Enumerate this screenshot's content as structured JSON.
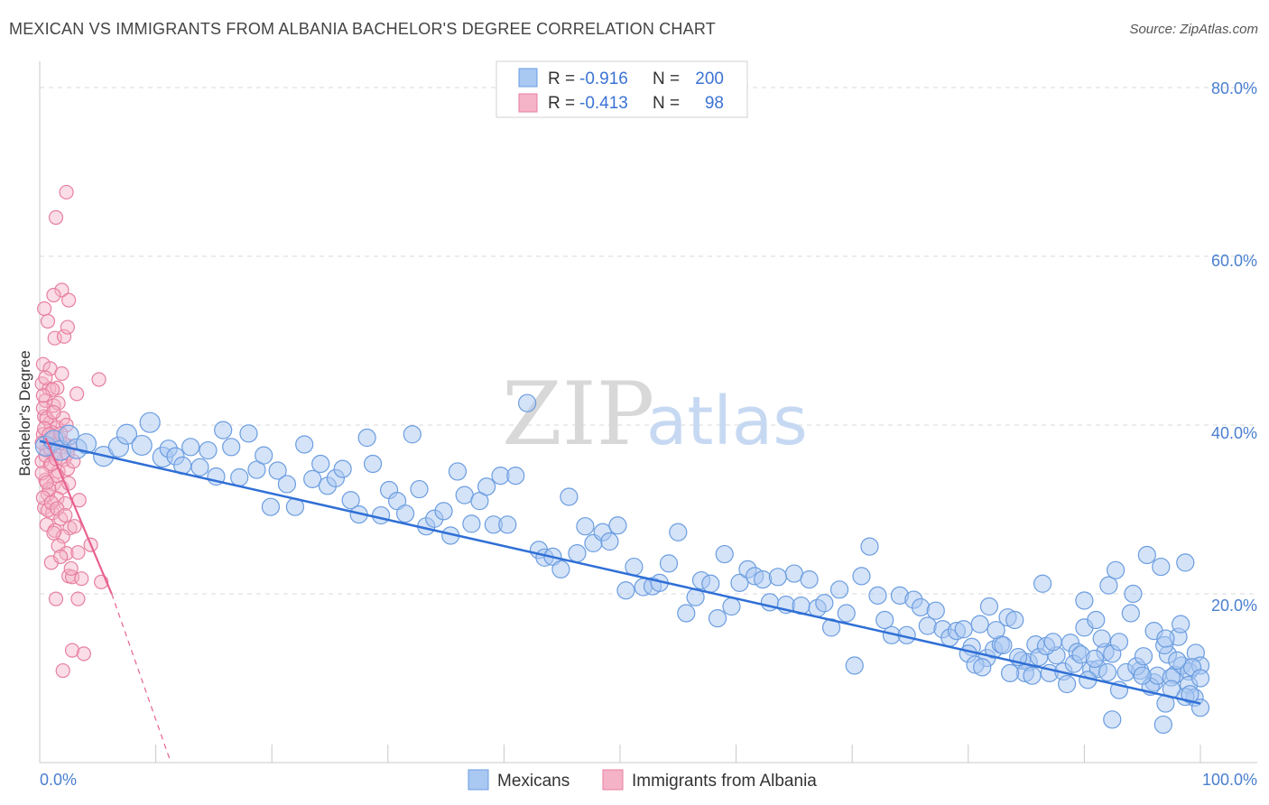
{
  "header": {
    "title": "MEXICAN VS IMMIGRANTS FROM ALBANIA BACHELOR'S DEGREE CORRELATION CHART",
    "source": "Source: ZipAtlas.com"
  },
  "watermark": {
    "zip": "ZIP",
    "atlas": "atlas"
  },
  "colors": {
    "blue_fill": "#a9c8f2",
    "blue_stroke": "#6b9de0",
    "blue_line": "#2f6fd6",
    "pink_fill": "#f5b3c8",
    "pink_stroke": "#e77fa0",
    "pink_line": "#e8628f",
    "grid": "#d9d9d9",
    "axis_text": "#4a7fd0"
  },
  "legend": {
    "rows": [
      {
        "r_label": "R =",
        "r_value": "-0.916",
        "n_label": "N =",
        "n_value": "200"
      },
      {
        "r_label": "R =",
        "r_value": "-0.413",
        "n_label": "N =",
        "n_value": "98"
      }
    ]
  },
  "bottom_legend": {
    "series1": "Mexicans",
    "series2": "Immigrants from Albania"
  },
  "chart_data": {
    "type": "scatter",
    "title": "MEXICAN VS IMMIGRANTS FROM ALBANIA BACHELOR'S DEGREE CORRELATION CHART",
    "xlabel": "",
    "ylabel": "Bachelor's Degree",
    "xlim": [
      0,
      100
    ],
    "ylim": [
      0,
      80
    ],
    "x_tick_labels": [
      "0.0%",
      "100.0%"
    ],
    "y_ticks": [
      20,
      40,
      60,
      80
    ],
    "y_tick_labels": [
      "20.0%",
      "40.0%",
      "60.0%",
      "80.0%"
    ],
    "grid": true,
    "series": [
      {
        "name": "Mexicans",
        "r": -0.916,
        "n": 200,
        "trend": {
          "x": [
            0,
            100
          ],
          "y": [
            38.1,
            7.0
          ]
        },
        "points": [
          [
            0.5,
            37.5
          ],
          [
            1.2,
            38.2
          ],
          [
            1.8,
            37.0
          ],
          [
            2.5,
            38.8
          ],
          [
            3.2,
            37.2
          ],
          [
            4.0,
            37.8
          ],
          [
            5.5,
            36.3
          ],
          [
            6.8,
            37.4
          ],
          [
            7.5,
            38.9
          ],
          [
            8.8,
            37.6
          ],
          [
            9.5,
            40.3
          ],
          [
            10.6,
            36.2
          ],
          [
            11.1,
            37.2
          ],
          [
            11.7,
            36.3
          ],
          [
            12.3,
            35.2
          ],
          [
            13.0,
            37.4
          ],
          [
            13.8,
            35.0
          ],
          [
            14.5,
            37.0
          ],
          [
            15.2,
            33.9
          ],
          [
            15.8,
            39.4
          ],
          [
            16.5,
            37.4
          ],
          [
            17.2,
            33.8
          ],
          [
            18.0,
            39.0
          ],
          [
            18.7,
            34.7
          ],
          [
            19.3,
            36.4
          ],
          [
            19.9,
            30.3
          ],
          [
            20.5,
            34.6
          ],
          [
            21.3,
            33.0
          ],
          [
            22.0,
            30.3
          ],
          [
            22.8,
            37.7
          ],
          [
            23.5,
            33.6
          ],
          [
            24.2,
            35.4
          ],
          [
            24.8,
            32.8
          ],
          [
            25.5,
            33.7
          ],
          [
            26.1,
            34.8
          ],
          [
            26.8,
            31.1
          ],
          [
            27.5,
            29.4
          ],
          [
            28.2,
            38.5
          ],
          [
            28.7,
            35.4
          ],
          [
            29.4,
            29.3
          ],
          [
            30.1,
            32.3
          ],
          [
            30.8,
            31.0
          ],
          [
            31.5,
            29.5
          ],
          [
            32.1,
            38.9
          ],
          [
            32.7,
            32.4
          ],
          [
            33.3,
            28.0
          ],
          [
            34.0,
            28.9
          ],
          [
            34.8,
            29.8
          ],
          [
            35.4,
            26.9
          ],
          [
            36.0,
            34.5
          ],
          [
            36.6,
            31.7
          ],
          [
            37.2,
            28.3
          ],
          [
            37.9,
            31.0
          ],
          [
            38.5,
            32.7
          ],
          [
            39.1,
            28.2
          ],
          [
            39.7,
            34.0
          ],
          [
            40.3,
            28.2
          ],
          [
            41.0,
            34.0
          ],
          [
            42.0,
            42.6
          ],
          [
            43.0,
            25.2
          ],
          [
            43.5,
            24.3
          ],
          [
            44.2,
            24.4
          ],
          [
            44.9,
            22.9
          ],
          [
            45.6,
            31.5
          ],
          [
            46.3,
            24.8
          ],
          [
            47.0,
            28.0
          ],
          [
            47.7,
            26.0
          ],
          [
            48.5,
            27.3
          ],
          [
            49.1,
            26.2
          ],
          [
            49.8,
            28.1
          ],
          [
            50.5,
            20.4
          ],
          [
            51.2,
            23.2
          ],
          [
            52.0,
            20.8
          ],
          [
            52.8,
            20.9
          ],
          [
            53.4,
            21.3
          ],
          [
            54.2,
            23.6
          ],
          [
            55.0,
            27.3
          ],
          [
            55.7,
            17.7
          ],
          [
            56.5,
            19.6
          ],
          [
            57.0,
            21.6
          ],
          [
            57.8,
            21.2
          ],
          [
            58.4,
            17.1
          ],
          [
            59.0,
            24.7
          ],
          [
            59.6,
            18.5
          ],
          [
            60.3,
            21.3
          ],
          [
            61.0,
            22.9
          ],
          [
            61.6,
            22.1
          ],
          [
            62.3,
            21.7
          ],
          [
            62.9,
            19.0
          ],
          [
            63.6,
            22.0
          ],
          [
            64.3,
            18.7
          ],
          [
            65.0,
            22.4
          ],
          [
            65.6,
            18.6
          ],
          [
            66.3,
            21.7
          ],
          [
            67.0,
            18.3
          ],
          [
            67.6,
            18.9
          ],
          [
            68.2,
            16.0
          ],
          [
            68.9,
            20.5
          ],
          [
            69.5,
            17.7
          ],
          [
            70.2,
            11.5
          ],
          [
            70.8,
            22.1
          ],
          [
            71.5,
            25.6
          ],
          [
            72.2,
            19.8
          ],
          [
            72.8,
            16.9
          ],
          [
            73.4,
            15.1
          ],
          [
            74.1,
            19.8
          ],
          [
            74.7,
            15.1
          ],
          [
            75.3,
            19.3
          ],
          [
            75.9,
            18.4
          ],
          [
            76.5,
            16.2
          ],
          [
            77.2,
            18.0
          ],
          [
            77.8,
            15.8
          ],
          [
            78.4,
            14.8
          ],
          [
            79.0,
            15.6
          ],
          [
            79.6,
            15.8
          ],
          [
            80.3,
            13.7
          ],
          [
            81.0,
            16.4
          ],
          [
            81.6,
            12.4
          ],
          [
            82.2,
            13.4
          ],
          [
            82.8,
            14.0
          ],
          [
            83.4,
            17.2
          ],
          [
            84.0,
            16.9
          ],
          [
            84.6,
            12.1
          ],
          [
            85.2,
            11.9
          ],
          [
            85.8,
            14.0
          ],
          [
            86.4,
            21.2
          ],
          [
            87.0,
            10.6
          ],
          [
            87.6,
            12.7
          ],
          [
            88.2,
            10.8
          ],
          [
            88.8,
            14.2
          ],
          [
            89.4,
            13.1
          ],
          [
            90.0,
            16.0
          ],
          [
            90.6,
            11.0
          ],
          [
            91.2,
            11.1
          ],
          [
            91.8,
            13.1
          ],
          [
            92.4,
            12.9
          ],
          [
            93.0,
            14.3
          ],
          [
            93.6,
            10.7
          ],
          [
            94.2,
            20.0
          ],
          [
            94.8,
            10.9
          ],
          [
            95.4,
            24.6
          ],
          [
            96.0,
            9.5
          ],
          [
            96.6,
            23.2
          ],
          [
            97.2,
            12.8
          ],
          [
            97.8,
            10.4
          ],
          [
            98.4,
            11.5
          ],
          [
            99.0,
            10.8
          ],
          [
            99.6,
            13.0
          ],
          [
            100.0,
            11.5
          ],
          [
            94.5,
            11.4
          ],
          [
            95.1,
            12.6
          ],
          [
            95.7,
            9.0
          ],
          [
            96.3,
            10.3
          ],
          [
            96.9,
            13.9
          ],
          [
            97.5,
            10.1
          ],
          [
            98.1,
            14.9
          ],
          [
            98.7,
            23.7
          ],
          [
            99.3,
            11.3
          ],
          [
            88.5,
            9.3
          ],
          [
            89.1,
            11.7
          ],
          [
            89.7,
            12.8
          ],
          [
            90.3,
            9.8
          ],
          [
            90.9,
            12.3
          ],
          [
            91.5,
            14.7
          ],
          [
            92.1,
            21.0
          ],
          [
            92.7,
            22.8
          ],
          [
            84.3,
            12.5
          ],
          [
            84.9,
            10.6
          ],
          [
            85.5,
            10.3
          ],
          [
            86.1,
            12.5
          ],
          [
            86.7,
            13.8
          ],
          [
            87.3,
            14.3
          ],
          [
            80.0,
            12.9
          ],
          [
            80.6,
            11.6
          ],
          [
            81.2,
            11.3
          ],
          [
            81.8,
            18.5
          ],
          [
            82.4,
            15.7
          ],
          [
            83.0,
            13.9
          ],
          [
            83.6,
            10.6
          ],
          [
            90.0,
            19.2
          ],
          [
            91.0,
            16.9
          ],
          [
            92.0,
            10.7
          ],
          [
            93.0,
            8.6
          ],
          [
            94.0,
            17.7
          ],
          [
            95.0,
            10.3
          ],
          [
            96.0,
            15.6
          ],
          [
            97.0,
            14.7
          ],
          [
            98.0,
            12.1
          ],
          [
            99.0,
            9.2
          ],
          [
            99.5,
            7.7
          ],
          [
            100.0,
            10.0
          ],
          [
            97.0,
            7.0
          ],
          [
            92.4,
            5.1
          ],
          [
            96.8,
            4.5
          ],
          [
            98.7,
            7.8
          ],
          [
            100.0,
            6.5
          ],
          [
            97.5,
            8.7
          ],
          [
            98.3,
            16.4
          ],
          [
            99.1,
            8.1
          ]
        ]
      },
      {
        "name": "Immigrants from Albania",
        "r": -0.413,
        "n": 98,
        "trend": {
          "x": [
            0.5,
            6.2
          ],
          "y": [
            38.5,
            20.0
          ]
        },
        "trend_dashed": {
          "x": [
            6.2,
            11.3
          ],
          "y": [
            20.0,
            0.0
          ]
        },
        "points": [
          [
            2.3,
            67.6
          ],
          [
            1.4,
            64.6
          ],
          [
            1.9,
            56.0
          ],
          [
            1.2,
            55.4
          ],
          [
            2.5,
            54.8
          ],
          [
            0.4,
            53.8
          ],
          [
            0.7,
            52.3
          ],
          [
            1.3,
            50.3
          ],
          [
            2.1,
            50.5
          ],
          [
            2.4,
            51.6
          ],
          [
            0.3,
            47.2
          ],
          [
            0.9,
            46.7
          ],
          [
            1.9,
            46.1
          ],
          [
            0.2,
            44.9
          ],
          [
            0.8,
            44.3
          ],
          [
            1.5,
            44.4
          ],
          [
            5.1,
            45.4
          ],
          [
            0.5,
            42.9
          ],
          [
            1.2,
            42.3
          ],
          [
            2.0,
            40.8
          ],
          [
            3.2,
            43.7
          ],
          [
            0.4,
            41.0
          ],
          [
            0.9,
            40.3
          ],
          [
            1.5,
            39.7
          ],
          [
            2.3,
            40.0
          ],
          [
            0.3,
            38.9
          ],
          [
            0.8,
            38.3
          ],
          [
            1.4,
            37.9
          ],
          [
            2.6,
            37.5
          ],
          [
            0.6,
            37.0
          ],
          [
            1.3,
            36.5
          ],
          [
            2.1,
            35.9
          ],
          [
            0.2,
            35.7
          ],
          [
            0.9,
            35.2
          ],
          [
            1.6,
            34.5
          ],
          [
            2.4,
            34.8
          ],
          [
            0.5,
            33.5
          ],
          [
            1.2,
            33.0
          ],
          [
            1.9,
            32.6
          ],
          [
            2.5,
            33.1
          ],
          [
            0.7,
            31.8
          ],
          [
            1.5,
            31.3
          ],
          [
            2.2,
            30.7
          ],
          [
            3.4,
            31.1
          ],
          [
            0.4,
            30.2
          ],
          [
            1.1,
            29.6
          ],
          [
            1.8,
            28.9
          ],
          [
            2.6,
            27.8
          ],
          [
            0.6,
            28.2
          ],
          [
            1.3,
            27.5
          ],
          [
            2.0,
            26.8
          ],
          [
            3.0,
            28.0
          ],
          [
            1.6,
            25.7
          ],
          [
            2.3,
            24.8
          ],
          [
            3.3,
            24.9
          ],
          [
            4.4,
            25.8
          ],
          [
            1.0,
            23.7
          ],
          [
            2.5,
            22.1
          ],
          [
            2.8,
            22.0
          ],
          [
            3.6,
            21.8
          ],
          [
            5.3,
            21.4
          ],
          [
            1.4,
            19.4
          ],
          [
            3.3,
            19.4
          ],
          [
            2.8,
            13.3
          ],
          [
            3.8,
            12.9
          ],
          [
            2.0,
            10.9
          ],
          [
            0.3,
            42.0
          ],
          [
            0.6,
            40.8
          ],
          [
            1.1,
            39.1
          ],
          [
            1.7,
            38.4
          ],
          [
            0.2,
            37.9
          ],
          [
            0.5,
            36.4
          ],
          [
            1.0,
            35.4
          ],
          [
            1.5,
            34.0
          ],
          [
            0.8,
            32.4
          ],
          [
            0.3,
            31.4
          ],
          [
            0.7,
            29.9
          ],
          [
            1.2,
            27.2
          ],
          [
            1.8,
            24.4
          ],
          [
            2.7,
            23.0
          ],
          [
            1.1,
            44.2
          ],
          [
            1.6,
            42.6
          ],
          [
            0.4,
            39.6
          ],
          [
            0.9,
            37.2
          ],
          [
            1.4,
            36.0
          ],
          [
            0.2,
            34.3
          ],
          [
            0.6,
            33.2
          ],
          [
            1.0,
            30.8
          ],
          [
            1.5,
            30.1
          ],
          [
            2.2,
            29.3
          ],
          [
            0.8,
            38.9
          ],
          [
            1.2,
            41.5
          ],
          [
            0.3,
            43.5
          ],
          [
            0.5,
            45.6
          ],
          [
            1.8,
            39.0
          ],
          [
            2.1,
            37.8
          ],
          [
            2.4,
            36.6
          ],
          [
            2.9,
            35.7
          ]
        ]
      }
    ]
  }
}
